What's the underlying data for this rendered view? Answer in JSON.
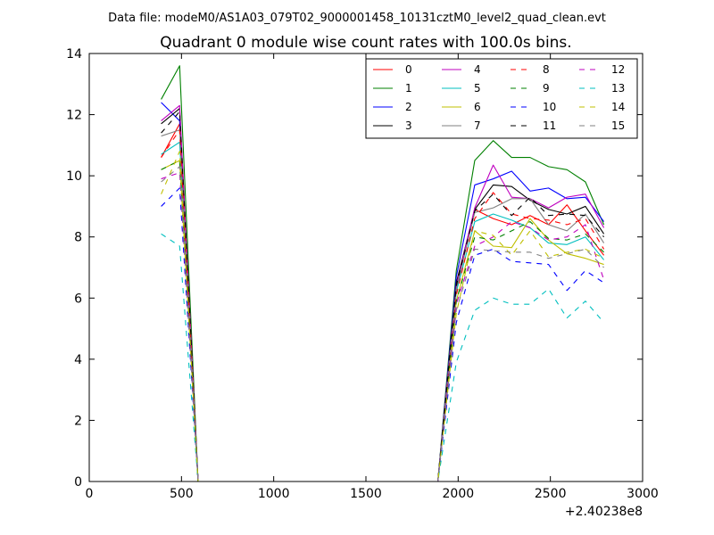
{
  "chart_data": {
    "type": "line",
    "suptitle": "Data file: modeM0/AS1A03_079T02_9000001458_10131cztM0_level2_quad_clean.evt",
    "title": "Quadrant 0 module wise count rates with 100.0s bins.",
    "xlabel": "",
    "ylabel": "",
    "x_offset_label": "+2.40238e8",
    "xlim": [
      0,
      3000
    ],
    "ylim": [
      0,
      14
    ],
    "xticks": [
      0,
      500,
      1000,
      1500,
      2000,
      2500,
      3000
    ],
    "yticks": [
      0,
      2,
      4,
      6,
      8,
      10,
      12,
      14
    ],
    "grid": false,
    "legend_position": "upper right",
    "legend_columns": 4,
    "x": [
      390,
      490,
      590,
      690,
      790,
      890,
      990,
      1090,
      1190,
      1290,
      1390,
      1490,
      1590,
      1690,
      1790,
      1890,
      1990,
      2090,
      2190,
      2290,
      2390,
      2490,
      2590,
      2690,
      2790
    ],
    "series": [
      {
        "name": "0",
        "color": "#ff0000",
        "dash": "solid",
        "values": [
          10.6,
          11.7,
          0,
          0,
          0,
          0,
          0,
          0,
          0,
          0,
          0,
          0,
          0,
          0,
          0,
          0,
          6.4,
          8.9,
          8.6,
          8.4,
          8.7,
          8.4,
          9.05,
          8.2,
          7.4
        ]
      },
      {
        "name": "1",
        "color": "#008000",
        "dash": "solid",
        "values": [
          12.5,
          13.6,
          0,
          0,
          0,
          0,
          0,
          0,
          0,
          0,
          0,
          0,
          0,
          0,
          0,
          0,
          6.9,
          10.5,
          11.15,
          10.6,
          10.6,
          10.3,
          10.2,
          9.8,
          8.4
        ]
      },
      {
        "name": "2",
        "color": "#0000ff",
        "dash": "solid",
        "values": [
          12.4,
          11.8,
          0,
          0,
          0,
          0,
          0,
          0,
          0,
          0,
          0,
          0,
          0,
          0,
          0,
          0,
          6.7,
          9.7,
          9.9,
          10.15,
          9.5,
          9.6,
          9.25,
          9.3,
          8.5
        ]
      },
      {
        "name": "3",
        "color": "#000000",
        "dash": "solid",
        "values": [
          11.7,
          12.2,
          0,
          0,
          0,
          0,
          0,
          0,
          0,
          0,
          0,
          0,
          0,
          0,
          0,
          0,
          6.5,
          8.9,
          9.7,
          9.65,
          9.2,
          8.9,
          8.75,
          9.0,
          8.1
        ]
      },
      {
        "name": "4",
        "color": "#bf00bf",
        "dash": "solid",
        "values": [
          11.8,
          12.3,
          0,
          0,
          0,
          0,
          0,
          0,
          0,
          0,
          0,
          0,
          0,
          0,
          0,
          0,
          6.4,
          8.95,
          10.35,
          9.3,
          9.25,
          8.95,
          9.3,
          9.4,
          8.3
        ]
      },
      {
        "name": "5",
        "color": "#00bfbf",
        "dash": "solid",
        "values": [
          10.7,
          11.1,
          0,
          0,
          0,
          0,
          0,
          0,
          0,
          0,
          0,
          0,
          0,
          0,
          0,
          0,
          6.2,
          8.5,
          8.75,
          8.55,
          8.3,
          7.8,
          7.75,
          8.0,
          7.25
        ]
      },
      {
        "name": "6",
        "color": "#bfbf00",
        "dash": "solid",
        "values": [
          10.2,
          10.5,
          0,
          0,
          0,
          0,
          0,
          0,
          0,
          0,
          0,
          0,
          0,
          0,
          0,
          0,
          5.9,
          8.2,
          7.7,
          7.65,
          8.6,
          7.9,
          7.45,
          7.3,
          7.1
        ]
      },
      {
        "name": "7",
        "color": "#808080",
        "dash": "solid",
        "values": [
          11.3,
          11.5,
          0,
          0,
          0,
          0,
          0,
          0,
          0,
          0,
          0,
          0,
          0,
          0,
          0,
          0,
          6.3,
          8.8,
          8.95,
          9.25,
          9.25,
          8.4,
          8.2,
          8.75,
          7.8
        ]
      },
      {
        "name": "8",
        "color": "#ff0000",
        "dash": "dashed",
        "values": [
          10.6,
          11.5,
          0,
          0,
          0,
          0,
          0,
          0,
          0,
          0,
          0,
          0,
          0,
          0,
          0,
          0,
          6.1,
          8.6,
          9.45,
          8.75,
          8.6,
          8.55,
          8.4,
          8.6,
          7.6
        ]
      },
      {
        "name": "9",
        "color": "#008000",
        "dash": "dashed",
        "values": [
          10.2,
          10.5,
          0,
          0,
          0,
          0,
          0,
          0,
          0,
          0,
          0,
          0,
          0,
          0,
          0,
          0,
          5.9,
          8.0,
          7.9,
          8.2,
          8.5,
          7.95,
          7.9,
          8.1,
          7.5
        ]
      },
      {
        "name": "10",
        "color": "#0000ff",
        "dash": "dashed",
        "values": [
          9.0,
          9.6,
          0,
          0,
          0,
          0,
          0,
          0,
          0,
          0,
          0,
          0,
          0,
          0,
          0,
          0,
          5.2,
          7.4,
          7.6,
          7.2,
          7.15,
          7.1,
          6.25,
          6.9,
          6.5
        ]
      },
      {
        "name": "11",
        "color": "#000000",
        "dash": "dashed",
        "values": [
          11.4,
          12.1,
          0,
          0,
          0,
          0,
          0,
          0,
          0,
          0,
          0,
          0,
          0,
          0,
          0,
          0,
          6.4,
          8.85,
          9.4,
          8.7,
          9.3,
          8.7,
          8.75,
          8.7,
          8.0
        ]
      },
      {
        "name": "12",
        "color": "#bf00bf",
        "dash": "dashed",
        "values": [
          9.9,
          10.1,
          0,
          0,
          0,
          0,
          0,
          0,
          0,
          0,
          0,
          0,
          0,
          0,
          0,
          0,
          5.8,
          7.7,
          8.0,
          8.5,
          8.3,
          7.9,
          8.0,
          8.4,
          6.6
        ]
      },
      {
        "name": "13",
        "color": "#00bfbf",
        "dash": "dashed",
        "values": [
          8.1,
          7.7,
          0,
          0,
          0,
          0,
          0,
          0,
          0,
          0,
          0,
          0,
          0,
          0,
          0,
          0,
          3.9,
          5.6,
          6.0,
          5.8,
          5.8,
          6.3,
          5.35,
          5.9,
          5.2
        ]
      },
      {
        "name": "14",
        "color": "#bfbf00",
        "dash": "dashed",
        "values": [
          9.4,
          10.8,
          0,
          0,
          0,
          0,
          0,
          0,
          0,
          0,
          0,
          0,
          0,
          0,
          0,
          0,
          5.5,
          8.2,
          8.05,
          7.4,
          8.2,
          7.35,
          7.5,
          7.6,
          7.3
        ]
      },
      {
        "name": "15",
        "color": "#808080",
        "dash": "dashed",
        "values": [
          9.8,
          10.3,
          0,
          0,
          0,
          0,
          0,
          0,
          0,
          0,
          0,
          0,
          0,
          0,
          0,
          0,
          5.6,
          7.6,
          7.55,
          7.5,
          7.5,
          7.3,
          7.45,
          7.6,
          7.0
        ]
      }
    ]
  }
}
